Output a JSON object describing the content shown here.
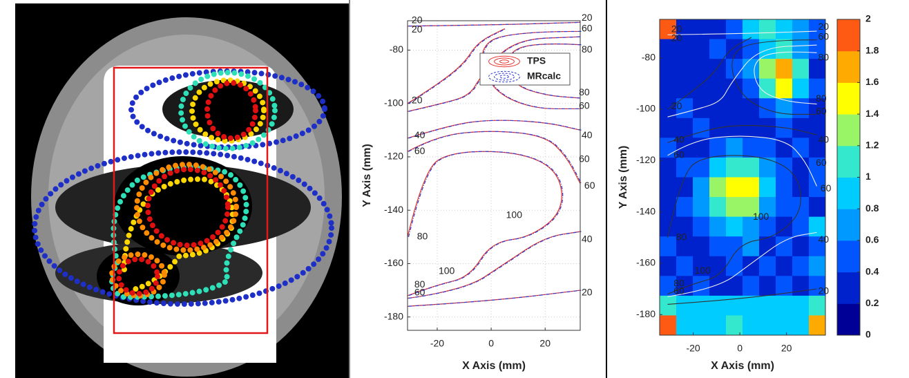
{
  "chart_data": [
    {
      "type": "contour",
      "xlabel": "X Axis (mm)",
      "ylabel": "Y Axis (mm)",
      "xlim": [
        -31,
        33
      ],
      "ylim": [
        -185,
        -69
      ],
      "xticks": [
        -20,
        0,
        20
      ],
      "yticks": [
        -80,
        -100,
        -120,
        -140,
        -160,
        -180
      ],
      "grid": true,
      "contour_levels": [
        20,
        40,
        60,
        80,
        100
      ],
      "series": [
        {
          "name": "TPS",
          "color": "#e8302a"
        },
        {
          "name": "MRcalc",
          "color": "#2a3bd6"
        }
      ],
      "legend": "upper right"
    },
    {
      "type": "heatmap",
      "xlabel": "X Axis (mm)",
      "ylabel": "Y Axis (mm)",
      "xlim": [
        -34.4,
        36.7
      ],
      "ylim": [
        -188,
        -65
      ],
      "xticks": [
        -20,
        0,
        20
      ],
      "yticks": [
        -80,
        -100,
        -120,
        -140,
        -160,
        -180
      ],
      "contour_levels": [
        20,
        40,
        60,
        80,
        100
      ],
      "clim": [
        0,
        2
      ],
      "cticks": [
        0,
        0.2,
        0.4,
        0.6,
        0.8,
        1,
        1.2,
        1.4,
        1.6,
        1.8,
        2
      ],
      "colors": [
        "#000096",
        "#0022cc",
        "#0055ff",
        "#0099ff",
        "#00ccff",
        "#33e8cc",
        "#99f566",
        "#ffff00",
        "#ffaa00",
        "#ff5a14"
      ],
      "z": [
        [
          1.8,
          0.3,
          0.2,
          0.3,
          0.5,
          0.8,
          1.0,
          0.9,
          0.6,
          0.4
        ],
        [
          0.3,
          0.2,
          0.3,
          0.4,
          0.3,
          0.5,
          0.8,
          1.0,
          0.7,
          0.4
        ],
        [
          0.2,
          0.3,
          0.2,
          0.3,
          0.4,
          0.6,
          1.2,
          1.7,
          1.0,
          0.3
        ],
        [
          0.3,
          0.2,
          0.3,
          0.2,
          0.3,
          0.5,
          1.0,
          1.4,
          0.8,
          0.4
        ],
        [
          0.2,
          0.4,
          0.3,
          0.2,
          0.2,
          0.3,
          0.5,
          0.6,
          0.4,
          0.3
        ],
        [
          0.3,
          0.2,
          0.4,
          0.3,
          0.3,
          0.2,
          0.3,
          0.4,
          0.3,
          0.2
        ],
        [
          0.4,
          0.3,
          0.3,
          0.5,
          0.6,
          0.5,
          0.4,
          0.3,
          0.4,
          0.3
        ],
        [
          0.2,
          0.4,
          0.5,
          0.9,
          1.1,
          1.0,
          0.6,
          0.4,
          0.3,
          0.5
        ],
        [
          0.3,
          0.3,
          0.7,
          1.2,
          1.5,
          1.4,
          0.8,
          0.5,
          0.3,
          0.4
        ],
        [
          0.2,
          0.4,
          0.6,
          1.1,
          1.3,
          1.2,
          0.7,
          0.4,
          0.5,
          0.3
        ],
        [
          0.3,
          0.3,
          0.4,
          0.6,
          0.8,
          0.7,
          0.5,
          0.3,
          0.4,
          0.8
        ],
        [
          0.4,
          0.2,
          0.3,
          0.5,
          0.4,
          0.6,
          0.3,
          0.4,
          0.3,
          0.5
        ],
        [
          0.3,
          0.5,
          0.3,
          0.2,
          0.4,
          0.3,
          0.5,
          0.3,
          0.4,
          0.6
        ],
        [
          0.5,
          0.3,
          0.4,
          0.3,
          0.2,
          0.4,
          0.3,
          0.5,
          0.3,
          0.4
        ],
        [
          1.0,
          0.8,
          0.9,
          0.8,
          0.9,
          0.8,
          0.9,
          0.8,
          0.9,
          1.0
        ],
        [
          1.8,
          0.9,
          0.9,
          0.8,
          1.0,
          0.9,
          0.9,
          0.8,
          0.9,
          1.7
        ]
      ]
    }
  ]
}
